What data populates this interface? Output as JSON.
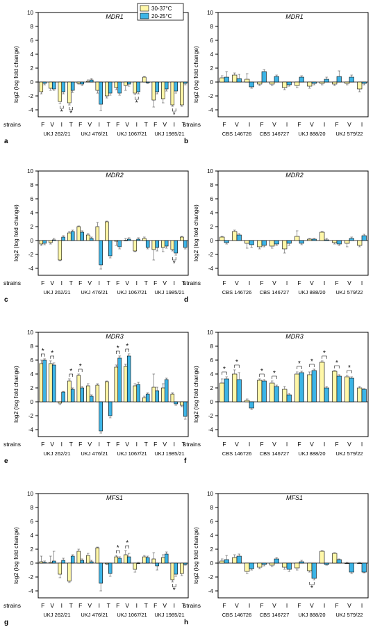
{
  "legend": [
    {
      "label": "30-37°C",
      "color": "#fff7a8"
    },
    {
      "label": "20-25°C",
      "color": "#3cb4e6"
    }
  ],
  "common": {
    "ylabel": "log2 (log fold change)",
    "row_label": "strains",
    "ylim": [
      -5,
      10
    ],
    "yticks": [
      -4,
      -2,
      0,
      2,
      4,
      6,
      8,
      10
    ],
    "bar_edge_color": "#000000"
  },
  "chart_data": [
    {
      "id": "a",
      "title": "MDR1",
      "type": "bar",
      "treatments": [
        "F",
        "V",
        "I",
        "T",
        "F",
        "V",
        "I",
        "T",
        "F",
        "V",
        "I",
        "T",
        "F",
        "V",
        "I",
        "T"
      ],
      "strains": [
        {
          "name": "UKJ 262/21",
          "span": [
            0,
            3
          ]
        },
        {
          "name": "UKJ 476/21",
          "span": [
            4,
            7
          ]
        },
        {
          "name": "UKJ 1067/21",
          "span": [
            8,
            11
          ]
        },
        {
          "name": "UKJ 1985/21",
          "span": [
            12,
            15
          ]
        }
      ],
      "series": [
        {
          "values": [
            -1.4,
            -0.9,
            -2.8,
            -3.0,
            -0.2,
            0.1,
            -1.2,
            -2.0,
            -0.8,
            -0.5,
            -1.6,
            0.7,
            -2.6,
            -2.4,
            -3.3,
            -3.3
          ],
          "errors": [
            0.3,
            0.3,
            0.3,
            0.3,
            0.1,
            0.2,
            0.4,
            0.3,
            0.3,
            0.7,
            0.2,
            0.1,
            1.0,
            0.6,
            0.2,
            0.2
          ]
        },
        {
          "values": [
            -0.2,
            -1.0,
            -1.4,
            -1.2,
            -0.3,
            0.3,
            -3.2,
            -1.6,
            -1.6,
            -0.3,
            -1.4,
            -0.1,
            -1.4,
            -1.0,
            -1.3,
            -0.2
          ],
          "errors": [
            0.2,
            0.2,
            0.3,
            0.3,
            0.2,
            0.2,
            0.9,
            0.3,
            0.3,
            0.3,
            0.3,
            0.1,
            0.3,
            0.3,
            0.3,
            0.2
          ]
        }
      ],
      "significant": [
        2,
        3,
        10,
        14
      ]
    },
    {
      "id": "b",
      "title": "MDR1",
      "type": "bar",
      "treatments": [
        "F",
        "V",
        "I",
        "F",
        "V",
        "I",
        "F",
        "V",
        "I",
        "F",
        "V",
        "I"
      ],
      "strains": [
        {
          "name": "CBS 146726",
          "span": [
            0,
            2
          ]
        },
        {
          "name": "CBS 146727",
          "span": [
            3,
            5
          ]
        },
        {
          "name": "UKJ 888/20",
          "span": [
            6,
            8
          ]
        },
        {
          "name": "UKJ 579/22",
          "span": [
            9,
            11
          ]
        }
      ],
      "series": [
        {
          "values": [
            0.6,
            1.0,
            0.4,
            -0.3,
            -0.3,
            -0.8,
            -0.5,
            -0.6,
            -0.2,
            -0.3,
            -0.2,
            -1.0
          ],
          "errors": [
            0.3,
            0.3,
            0.8,
            0.2,
            0.2,
            0.3,
            0.3,
            0.3,
            0.2,
            0.2,
            0.2,
            0.4
          ]
        },
        {
          "values": [
            0.7,
            0.5,
            -0.7,
            1.5,
            0.8,
            -0.4,
            0.7,
            -0.2,
            0.4,
            0.8,
            0.7,
            -0.2
          ],
          "errors": [
            0.8,
            0.6,
            0.2,
            0.3,
            0.2,
            0.2,
            0.2,
            0.2,
            0.3,
            0.8,
            0.3,
            0.2
          ]
        }
      ],
      "significant": []
    },
    {
      "id": "c",
      "title": "MDR2",
      "type": "bar",
      "treatments": [
        "F",
        "V",
        "I",
        "T",
        "F",
        "V",
        "I",
        "T",
        "F",
        "V",
        "I",
        "T",
        "F",
        "V",
        "I",
        "T"
      ],
      "strains": [
        {
          "name": "UKJ 262/21",
          "span": [
            0,
            3
          ]
        },
        {
          "name": "UKJ 476/21",
          "span": [
            4,
            7
          ]
        },
        {
          "name": "UKJ 1067/21",
          "span": [
            8,
            11
          ]
        },
        {
          "name": "UKJ 1985/21",
          "span": [
            12,
            15
          ]
        }
      ],
      "series": [
        {
          "values": [
            -0.5,
            -0.3,
            -2.8,
            1.1,
            2.0,
            0.8,
            2.0,
            2.7,
            -0.1,
            0.0,
            -1.5,
            0.3,
            -1.3,
            -1.0,
            -1.3,
            0.5
          ],
          "errors": [
            0.2,
            0.2,
            0.1,
            0.2,
            0.1,
            0.2,
            0.6,
            0.1,
            0.6,
            0.3,
            0.1,
            0.2,
            1.5,
            0.6,
            0.2,
            0.1
          ]
        },
        {
          "values": [
            -0.4,
            0.1,
            0.5,
            1.3,
            1.2,
            0.3,
            -3.5,
            -2.2,
            -0.9,
            0.2,
            0.2,
            -1.0,
            -1.0,
            -0.8,
            -1.8,
            -1.0
          ],
          "errors": [
            0.2,
            0.2,
            0.2,
            0.2,
            0.2,
            0.2,
            0.6,
            0.3,
            0.3,
            0.2,
            0.2,
            0.2,
            0.5,
            0.3,
            0.3,
            0.2
          ]
        }
      ],
      "significant": [
        14
      ]
    },
    {
      "id": "d",
      "title": "MDR2",
      "type": "bar",
      "treatments": [
        "F",
        "V",
        "I",
        "F",
        "V",
        "I",
        "F",
        "V",
        "I",
        "F",
        "V",
        "I"
      ],
      "strains": [
        {
          "name": "CBS 146726",
          "span": [
            0,
            2
          ]
        },
        {
          "name": "CBS 146727",
          "span": [
            3,
            5
          ]
        },
        {
          "name": "UKJ 888/20",
          "span": [
            6,
            8
          ]
        },
        {
          "name": "UKJ 579/22",
          "span": [
            9,
            11
          ]
        }
      ],
      "series": [
        {
          "values": [
            0.5,
            1.3,
            -0.4,
            -0.9,
            -0.8,
            -1.2,
            0.6,
            0.2,
            1.2,
            -0.3,
            -0.4,
            -0.7
          ],
          "errors": [
            0.1,
            0.2,
            0.7,
            0.3,
            0.3,
            0.6,
            0.8,
            0.1,
            0.1,
            0.2,
            0.5,
            0.2
          ]
        },
        {
          "values": [
            -0.3,
            0.8,
            -0.6,
            -0.7,
            -0.5,
            -0.4,
            -0.4,
            0.2,
            0.1,
            -0.5,
            0.3,
            0.7
          ],
          "errors": [
            0.2,
            0.2,
            0.4,
            0.2,
            0.2,
            0.3,
            0.2,
            0.1,
            0.2,
            0.2,
            0.2,
            0.2
          ]
        }
      ],
      "significant": []
    },
    {
      "id": "e",
      "title": "MDR3",
      "type": "bar",
      "treatments": [
        "F",
        "V",
        "I",
        "T",
        "F",
        "V",
        "I",
        "T",
        "F",
        "V",
        "I",
        "T",
        "F",
        "V",
        "I",
        "T"
      ],
      "strains": [
        {
          "name": "UKJ 262/21",
          "span": [
            0,
            3
          ]
        },
        {
          "name": "UKJ 476/21",
          "span": [
            4,
            7
          ]
        },
        {
          "name": "UKJ 1067/21",
          "span": [
            8,
            11
          ]
        },
        {
          "name": "UKJ 1985/21",
          "span": [
            12,
            15
          ]
        }
      ],
      "series": [
        {
          "values": [
            5.5,
            5.5,
            -0.2,
            3.0,
            3.8,
            2.3,
            2.4,
            2.9,
            5.0,
            5.1,
            2.3,
            0.6,
            2.1,
            2.0,
            1.1,
            -0.5
          ],
          "errors": [
            0.5,
            0.4,
            0.2,
            0.3,
            0.2,
            0.3,
            0.2,
            0.1,
            0.3,
            0.3,
            0.3,
            0.2,
            1.9,
            0.6,
            0.2,
            0.2
          ]
        },
        {
          "values": [
            6.0,
            5.3,
            1.4,
            1.8,
            2.0,
            0.8,
            -4.2,
            -2.0,
            6.3,
            6.6,
            2.5,
            1.1,
            1.6,
            3.2,
            -0.3,
            -2.1
          ],
          "errors": [
            0.2,
            0.3,
            0.1,
            0.2,
            0.2,
            0.2,
            0.3,
            0.3,
            0.3,
            0.3,
            0.3,
            0.2,
            0.5,
            0.2,
            0.2,
            0.4
          ]
        }
      ],
      "significant": [
        0,
        1,
        3,
        4,
        8,
        9
      ]
    },
    {
      "id": "f",
      "title": "MDR3",
      "type": "bar",
      "treatments": [
        "F",
        "V",
        "I",
        "F",
        "V",
        "I",
        "F",
        "V",
        "I",
        "F",
        "V",
        "I"
      ],
      "strains": [
        {
          "name": "CBS 146726",
          "span": [
            0,
            2
          ]
        },
        {
          "name": "CBS 146727",
          "span": [
            3,
            5
          ]
        },
        {
          "name": "UKJ 888/20",
          "span": [
            6,
            8
          ]
        },
        {
          "name": "UKJ 579/22",
          "span": [
            9,
            11
          ]
        }
      ],
      "series": [
        {
          "values": [
            2.7,
            4.0,
            0.2,
            3.1,
            2.7,
            1.8,
            4.0,
            3.9,
            5.7,
            4.4,
            3.6,
            2.0
          ],
          "errors": [
            0.6,
            0.6,
            0.2,
            0.2,
            0.3,
            0.4,
            0.3,
            0.4,
            0.2,
            0.1,
            0.2,
            0.2
          ]
        },
        {
          "values": [
            3.3,
            3.2,
            -0.9,
            3.0,
            2.2,
            1.0,
            4.2,
            4.5,
            2.0,
            3.7,
            3.4,
            1.8
          ],
          "errors": [
            0.3,
            1.0,
            0.2,
            0.2,
            0.2,
            0.2,
            0.2,
            0.2,
            0.2,
            0.2,
            0.2,
            0.1
          ]
        }
      ],
      "significant": [
        0,
        1,
        3,
        4,
        6,
        7,
        8,
        9,
        10
      ]
    },
    {
      "id": "g",
      "title": "MFS1",
      "type": "bar",
      "treatments": [
        "F",
        "V",
        "I",
        "T",
        "F",
        "V",
        "I",
        "T",
        "F",
        "V",
        "I",
        "T",
        "F",
        "V",
        "I",
        "T"
      ],
      "strains": [
        {
          "name": "UKJ 262/21",
          "span": [
            0,
            3
          ]
        },
        {
          "name": "UKJ 476/21",
          "span": [
            4,
            7
          ]
        },
        {
          "name": "UKJ 1067/21",
          "span": [
            8,
            11
          ]
        },
        {
          "name": "UKJ 1985/21",
          "span": [
            12,
            15
          ]
        }
      ],
      "series": [
        {
          "values": [
            0.2,
            0.1,
            -1.6,
            -2.6,
            1.7,
            1.1,
            2.2,
            -0.1,
            0.9,
            1.2,
            -0.9,
            0.9,
            0.6,
            0.8,
            -2.4,
            -1.5
          ],
          "errors": [
            0.8,
            0.9,
            0.5,
            0.2,
            0.3,
            0.3,
            0.1,
            0.1,
            0.2,
            0.6,
            0.4,
            0.2,
            0.9,
            0.4,
            0.3,
            0.3
          ]
        },
        {
          "values": [
            0.1,
            0.3,
            0.4,
            1.0,
            0.4,
            0.2,
            -2.9,
            -1.5,
            0.7,
            0.9,
            0.0,
            0.8,
            -0.4,
            1.3,
            -1.6,
            -0.2
          ],
          "errors": [
            0.2,
            1.4,
            0.3,
            0.2,
            0.2,
            0.2,
            1.1,
            0.4,
            0.2,
            0.5,
            0.1,
            0.2,
            0.6,
            0.3,
            0.3,
            0.1
          ]
        }
      ],
      "significant": [
        8,
        9,
        14
      ]
    },
    {
      "id": "h",
      "title": "MFS1",
      "type": "bar",
      "treatments": [
        "F",
        "V",
        "I",
        "F",
        "V",
        "I",
        "F",
        "V",
        "I",
        "F",
        "V",
        "I"
      ],
      "strains": [
        {
          "name": "CBS 146726",
          "span": [
            0,
            2
          ]
        },
        {
          "name": "CBS 146727",
          "span": [
            3,
            5
          ]
        },
        {
          "name": "UKJ 888/20",
          "span": [
            6,
            8
          ]
        },
        {
          "name": "UKJ 579/22",
          "span": [
            9,
            11
          ]
        }
      ],
      "series": [
        {
          "values": [
            0.3,
            0.8,
            -1.2,
            -0.6,
            -0.3,
            -0.6,
            -0.7,
            -1.1,
            1.7,
            1.4,
            0.0,
            0.0
          ],
          "errors": [
            0.3,
            0.4,
            0.3,
            0.2,
            0.2,
            0.3,
            0.3,
            0.2,
            0.1,
            0.1,
            0.1,
            0.1
          ]
        },
        {
          "values": [
            0.5,
            1.0,
            -0.8,
            -0.2,
            0.6,
            -0.9,
            0.2,
            -2.2,
            -0.2,
            0.5,
            -1.3,
            -1.3
          ],
          "errors": [
            0.6,
            0.3,
            0.2,
            0.2,
            0.2,
            0.3,
            0.2,
            0.2,
            0.1,
            0.1,
            0.2,
            0.1
          ]
        }
      ],
      "significant": [
        7
      ]
    }
  ]
}
